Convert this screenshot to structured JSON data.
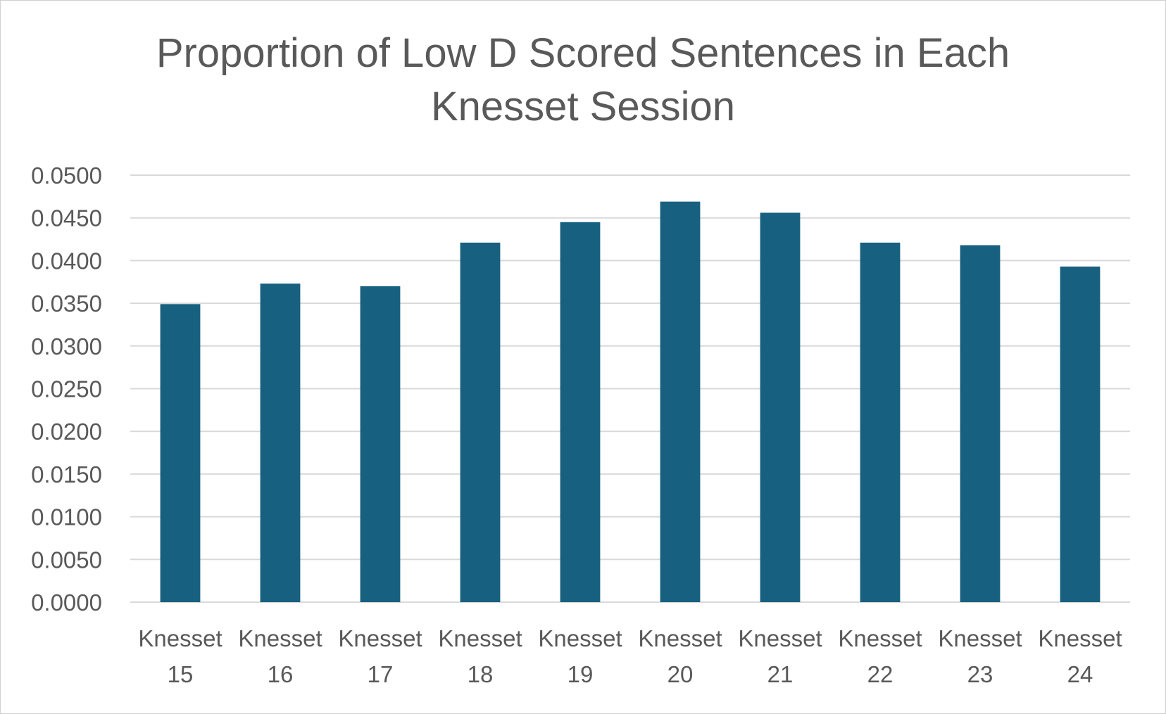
{
  "chart_data": {
    "type": "bar",
    "title_lines": [
      "Proportion of Low D Scored Sentences in Each",
      "Knesset Session"
    ],
    "categories": [
      [
        "Knesset",
        "15"
      ],
      [
        "Knesset",
        "16"
      ],
      [
        "Knesset",
        "17"
      ],
      [
        "Knesset",
        "18"
      ],
      [
        "Knesset",
        "19"
      ],
      [
        "Knesset",
        "20"
      ],
      [
        "Knesset",
        "21"
      ],
      [
        "Knesset",
        "22"
      ],
      [
        "Knesset",
        "23"
      ],
      [
        "Knesset",
        "24"
      ]
    ],
    "values": [
      0.0349,
      0.0373,
      0.037,
      0.0421,
      0.0445,
      0.0469,
      0.0456,
      0.0421,
      0.0418,
      0.0393
    ],
    "yticks": [
      "0.0000",
      "0.0050",
      "0.0100",
      "0.0150",
      "0.0200",
      "0.0250",
      "0.0300",
      "0.0350",
      "0.0400",
      "0.0450",
      "0.0500"
    ],
    "ylim": [
      0,
      0.05
    ],
    "grid": true,
    "colors": {
      "bar": "#17607f",
      "grid": "#d9d9d9",
      "text": "#595959"
    }
  }
}
